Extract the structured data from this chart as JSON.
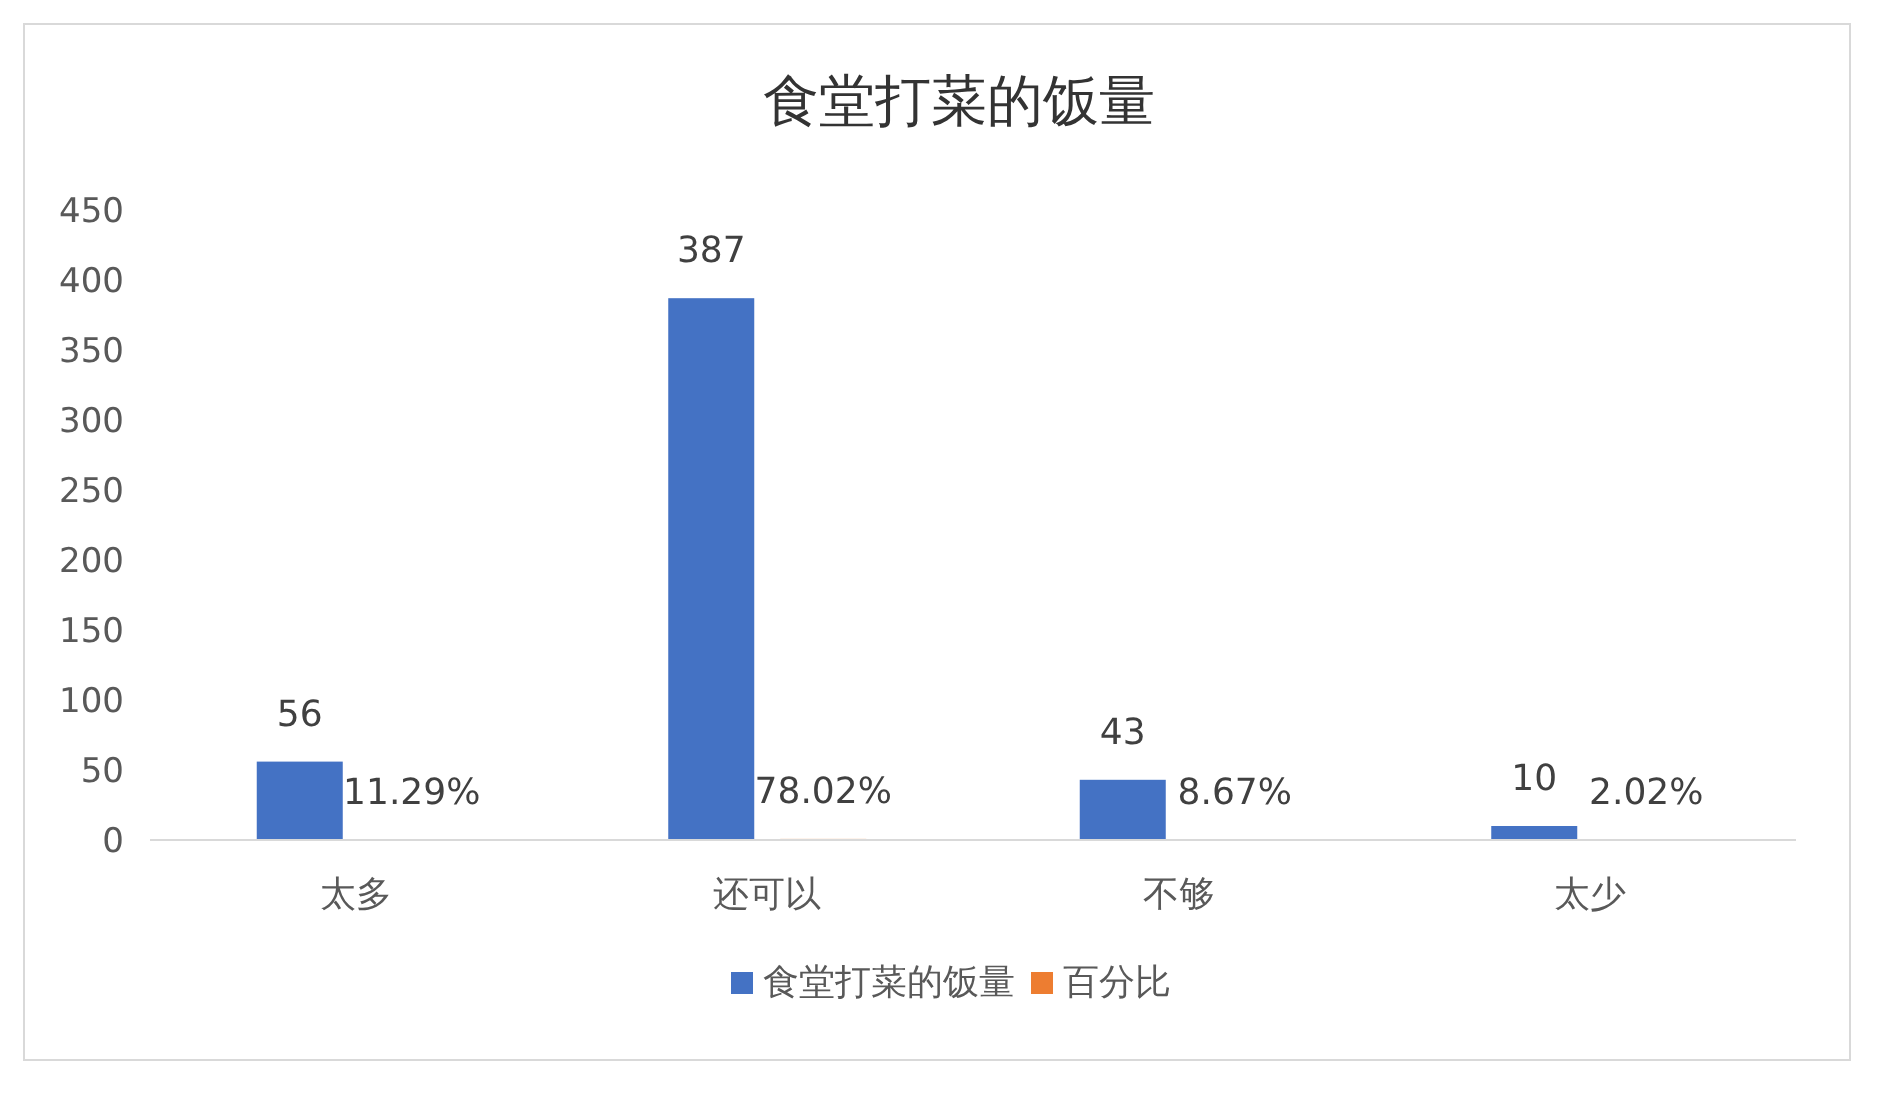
{
  "chart_data": {
    "type": "bar",
    "title": "食堂打菜的饭量",
    "categories": [
      "太多",
      "还可以",
      "不够",
      "太少"
    ],
    "series": [
      {
        "name": "食堂打菜的饭量",
        "color": "#4472c4",
        "values": [
          56,
          387,
          43,
          10
        ],
        "value_labels": [
          "56",
          "387",
          "43",
          "10"
        ]
      },
      {
        "name": "百分比",
        "color": "#ed7d31",
        "values": [
          0.1129,
          0.7802,
          0.0867,
          0.0202
        ],
        "value_labels": [
          "11.29%",
          "78.02%",
          "8.67%",
          "2.02%"
        ]
      }
    ],
    "ylim": [
      0,
      450
    ],
    "yticks": [
      0,
      50,
      100,
      150,
      200,
      250,
      300,
      350,
      400,
      450
    ],
    "grid": false,
    "legend": "bottom"
  }
}
